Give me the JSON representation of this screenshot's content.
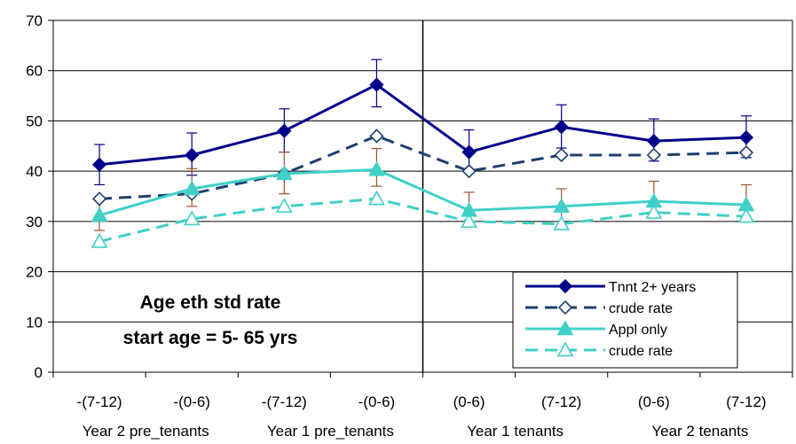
{
  "chart_data": {
    "type": "line",
    "categories": [
      "-(7-12)",
      "-(0-6)",
      "-(7-12)",
      "-(0-6)",
      "(0-6)",
      "(7-12)",
      "(0-6)",
      "(7-12)"
    ],
    "group_labels": [
      {
        "label": "Year 2 pre_tenants",
        "from": 0,
        "to": 1
      },
      {
        "label": "Year 1 pre_tenants",
        "from": 2,
        "to": 3
      },
      {
        "label": "Year 1 tenants",
        "from": 4,
        "to": 5
      },
      {
        "label": "Year 2 tenants",
        "from": 6,
        "to": 7
      }
    ],
    "ylim": [
      0,
      70
    ],
    "yticks": [
      0,
      10,
      20,
      30,
      40,
      50,
      60,
      70
    ],
    "grid": "horizontal",
    "divider_after_category": 3,
    "annotation": [
      "Age eth std rate",
      "start age = 5- 65 yrs"
    ],
    "legend_position": "bottom-right",
    "series": [
      {
        "name": "Tnnt 2+ years",
        "values": [
          41.3,
          43.2,
          48.0,
          57.2,
          43.8,
          48.8,
          46.0,
          46.7
        ],
        "err_low": [
          37.3,
          39.2,
          43.8,
          52.8,
          39.8,
          44.6,
          42.0,
          42.7
        ],
        "err_high": [
          45.3,
          47.6,
          52.4,
          62.2,
          48.2,
          53.2,
          50.4,
          51.0
        ],
        "color": "#00008b",
        "dash": false,
        "marker": "diamond",
        "filled": true
      },
      {
        "name": "crude rate",
        "values": [
          34.5,
          35.5,
          39.5,
          47.0,
          40.0,
          43.2,
          43.2,
          43.7
        ],
        "color": "#1f3f6f",
        "dash": true,
        "marker": "diamond",
        "filled": false
      },
      {
        "name": "Appl only",
        "values": [
          31.2,
          36.5,
          39.5,
          40.3,
          32.2,
          33.0,
          34.0,
          33.3
        ],
        "err_low": [
          28.2,
          33.0,
          35.5,
          37.0,
          29.2,
          29.5,
          30.8,
          30.2
        ],
        "err_high": [
          34.5,
          40.5,
          43.8,
          44.5,
          35.8,
          36.5,
          38.0,
          37.3
        ],
        "color": "#40d0c8",
        "dash": false,
        "marker": "triangle",
        "filled": true
      },
      {
        "name": "crude rate",
        "values": [
          26.0,
          30.5,
          33.0,
          34.5,
          30.0,
          29.5,
          31.8,
          31.0
        ],
        "color": "#40d0c8",
        "dash": true,
        "marker": "triangle",
        "filled": false
      }
    ],
    "colors": {
      "primary_err": "#00008b",
      "secondary_err": "#a0522d"
    }
  }
}
